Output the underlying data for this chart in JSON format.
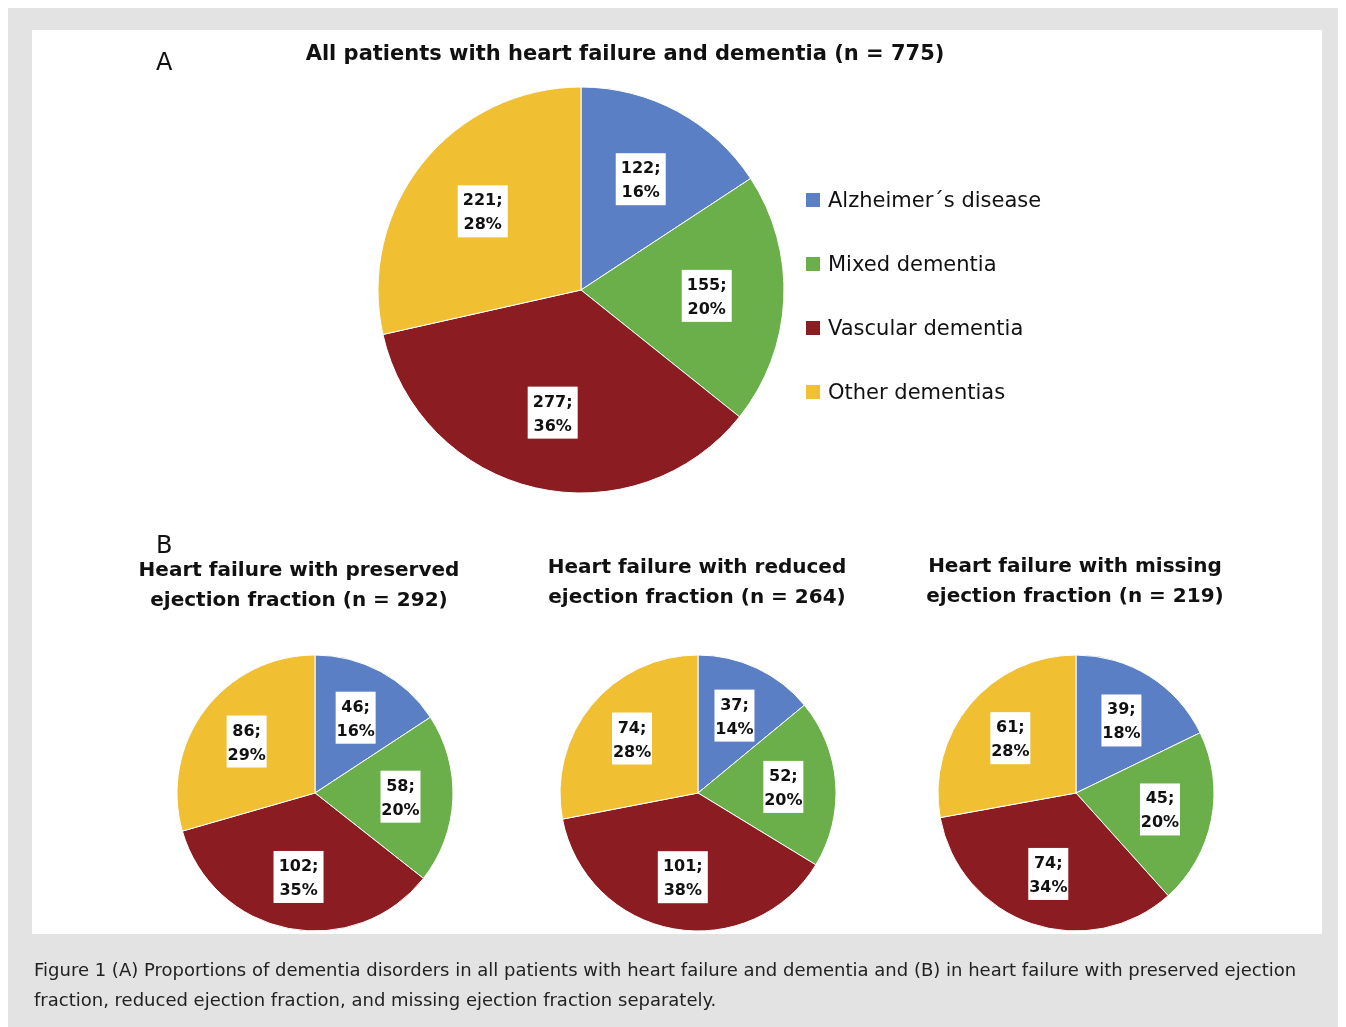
{
  "chart_data": [
    {
      "type": "pie",
      "title": "All patients with heart failure and dementia (n = 775)",
      "categories": [
        "Alzheimer´s disease",
        "Mixed dementia",
        "Vascular dementia",
        "Other dementias"
      ],
      "values": [
        122,
        155,
        277,
        221
      ],
      "colors": [
        "#5b7fc4",
        "#6aaf4a",
        "#8b1d22",
        "#f0bf32"
      ],
      "value_labels": [
        "122; 16%",
        "155; 20%",
        "277; 36%",
        "221; 28%"
      ],
      "legend": "right",
      "annotations": [
        "A",
        "Figure 1  (A) Proportions of dementia disorders in all patients with heart failure and dementia and (B) in heart failure with preserved ejection fraction, reduced ejection fraction, and missing ejection fraction separately."
      ]
    },
    {
      "type": "pie",
      "title": "Heart failure with preserved ejection fraction (n = 292)",
      "categories": [
        null,
        null,
        null,
        null
      ],
      "values": [
        46,
        58,
        102,
        86
      ],
      "colors": [
        "#5b7fc4",
        "#6aaf4a",
        "#8b1d22",
        "#f0bf32"
      ],
      "value_labels": [
        "46; 16%",
        "58; 20%",
        "102; 35%",
        "86; 29%"
      ],
      "annotations": [
        "B"
      ]
    },
    {
      "type": "pie",
      "title": "Heart failure with reduced ejection fraction (n = 264)",
      "categories": [
        null,
        null,
        null,
        null
      ],
      "values": [
        37,
        52,
        101,
        74
      ],
      "colors": [
        "#5b7fc4",
        "#6aaf4a",
        "#8b1d22",
        "#f0bf32"
      ],
      "value_labels": [
        "37; 14%",
        "52; 20%",
        "101; 38%",
        "74; 28%"
      ]
    },
    {
      "type": "pie",
      "title": "Heart failure with missing ejection fraction (n = 219)",
      "categories": [
        null,
        null,
        null,
        null
      ],
      "values": [
        39,
        45,
        74,
        61
      ],
      "colors": [
        "#5b7fc4",
        "#6aaf4a",
        "#8b1d22",
        "#f0bf32"
      ],
      "value_labels": [
        "39; 18%",
        "45; 20%",
        "74; 34%",
        "61; 28%"
      ]
    }
  ]
}
